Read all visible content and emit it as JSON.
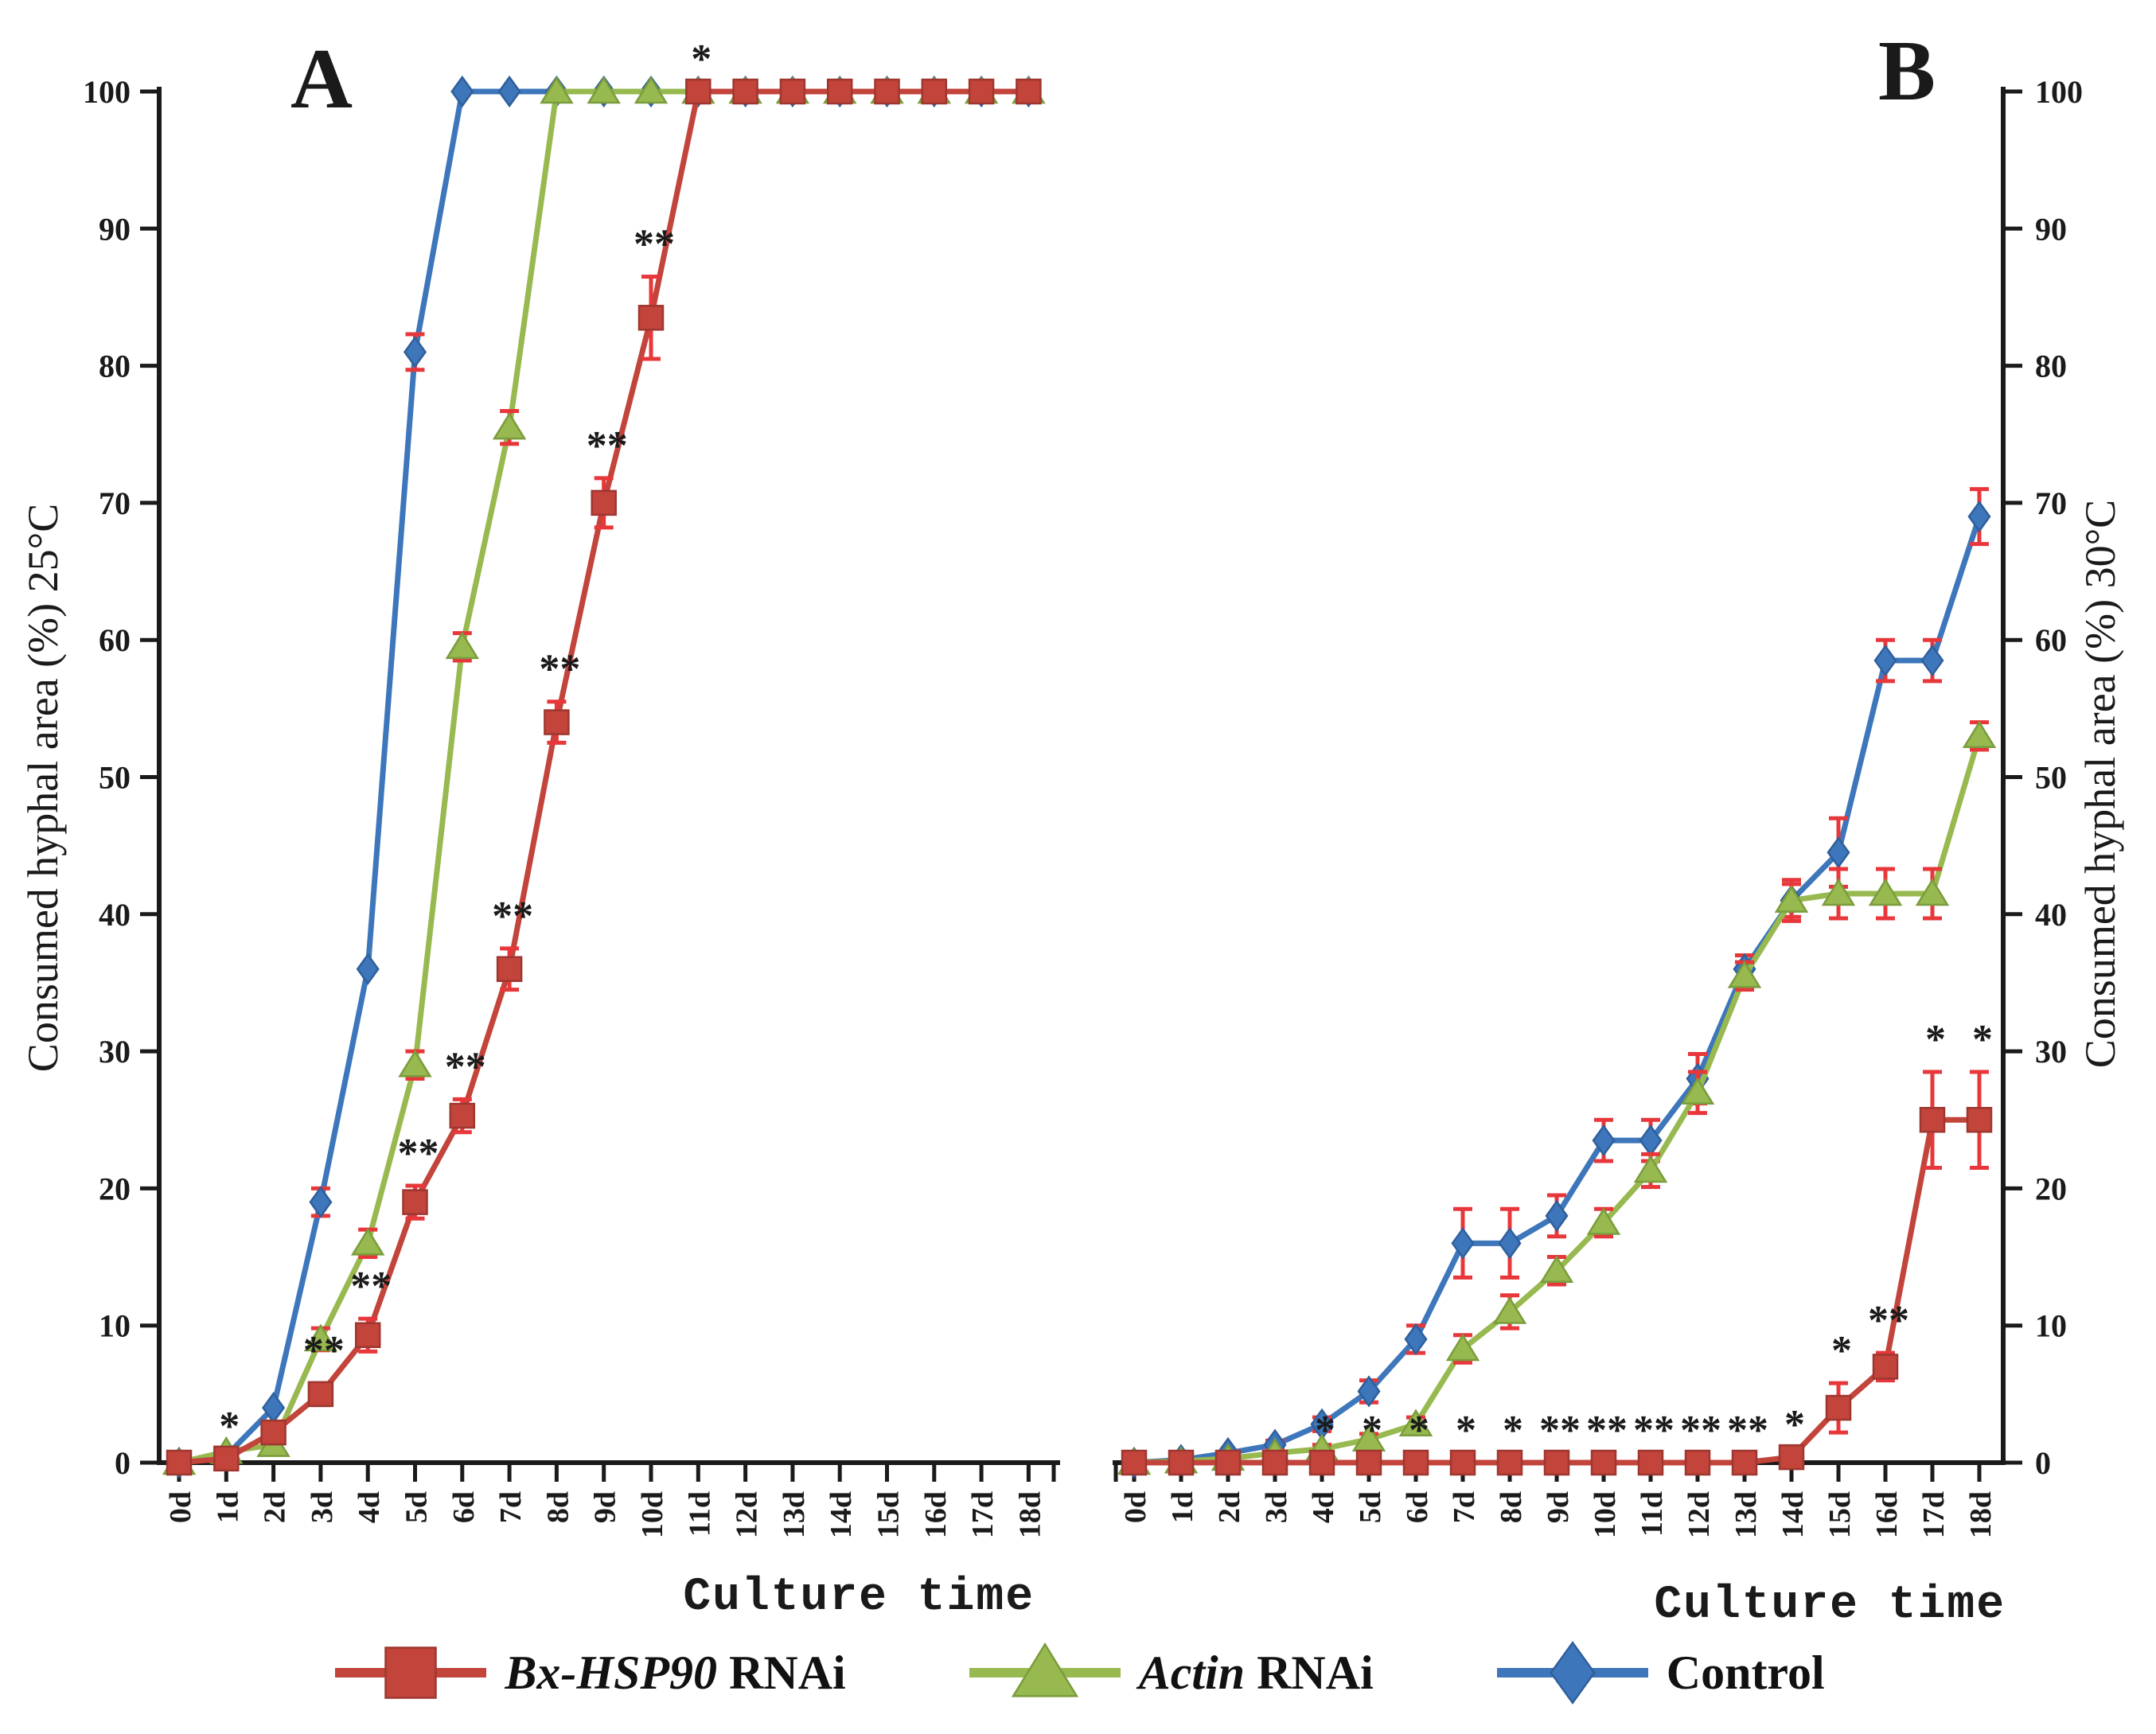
{
  "figure": {
    "panel_a_letter": "A",
    "panel_b_letter": "B",
    "background": "#ffffff",
    "significance_color": "#e93347",
    "error_bar_color": "#e8373b"
  },
  "legend": {
    "items": [
      {
        "italic": "Bx-HSP90",
        "rest": " RNAi",
        "marker": "square",
        "color": "#c2443b",
        "edge": "#9e3730"
      },
      {
        "italic": "Actin",
        "rest": " RNAi",
        "marker": "triangle",
        "color": "#97b94f",
        "edge": "#7a9c3c"
      },
      {
        "italic": "",
        "rest": "Control",
        "marker": "diamond",
        "color": "#3d76bb",
        "edge": "#2f5f9a"
      }
    ]
  },
  "chart_data": [
    {
      "type": "line",
      "panel": "A",
      "title": "",
      "xlabel": "Culture time",
      "ylabel": "Consumed hyphal area (%) 25°C",
      "ylim": [
        0,
        100
      ],
      "ytick_step": 10,
      "grid": false,
      "legend_position": "bottom",
      "categories": [
        "0d",
        "1d",
        "2d",
        "3d",
        "4d",
        "5d",
        "6d",
        "7d",
        "8d",
        "9d",
        "10d",
        "11d",
        "12d",
        "13d",
        "14d",
        "15d",
        "16d",
        "17d",
        "18d"
      ],
      "series": [
        {
          "name": "Bx-HSP90 RNAi",
          "marker": "square",
          "color": "#c2443b",
          "edge": "#9e3730",
          "values": [
            0,
            0.3,
            2.2,
            5,
            9.3,
            19,
            25.3,
            36,
            54,
            70,
            83.5,
            100,
            100,
            100,
            100,
            100,
            100,
            100,
            100
          ],
          "errors": [
            0,
            0,
            0.5,
            0.8,
            1.2,
            1.2,
            1.2,
            1.5,
            1.5,
            1.8,
            3,
            0,
            0,
            0,
            0,
            0,
            0,
            0,
            0
          ]
        },
        {
          "name": "Actin RNAi",
          "marker": "triangle",
          "color": "#97b94f",
          "edge": "#7a9c3c",
          "values": [
            0,
            0.8,
            1.3,
            9,
            16,
            29,
            59.5,
            75.5,
            100,
            100,
            100,
            100,
            100,
            100,
            100,
            100,
            100,
            100,
            100
          ],
          "errors": [
            0,
            0,
            0,
            0.8,
            1,
            1,
            1,
            1.2,
            0,
            0,
            0,
            0,
            0,
            0,
            0,
            0,
            0,
            0,
            0
          ]
        },
        {
          "name": "Control",
          "marker": "diamond",
          "color": "#3d76bb",
          "edge": "#2f5f9a",
          "values": [
            0,
            0.5,
            4,
            19,
            36,
            81,
            100,
            100,
            100,
            100,
            100,
            100,
            100,
            100,
            100,
            100,
            100,
            100,
            100
          ],
          "errors": [
            0,
            0,
            0,
            1,
            0,
            1.3,
            0,
            0,
            0,
            0,
            0,
            0,
            0,
            0,
            0,
            0,
            0,
            0,
            0
          ]
        }
      ],
      "significance_above_series": "Bx-HSP90 RNAi",
      "significance": {
        "1d": "*",
        "3d": "**",
        "4d": "**",
        "5d": "**",
        "6d": "**",
        "7d": "**",
        "8d": "**",
        "9d": "**",
        "10d": "**",
        "11d": "*"
      }
    },
    {
      "type": "line",
      "panel": "B",
      "title": "",
      "xlabel": "Culture time",
      "ylabel": "Consumed hyphal area (%) 30°C",
      "ylim": [
        0,
        100
      ],
      "ytick_step": 10,
      "grid": false,
      "legend_position": "bottom",
      "categories": [
        "0d",
        "1d",
        "2d",
        "3d",
        "4d",
        "5d",
        "6d",
        "7d",
        "8d",
        "9d",
        "10d",
        "11d",
        "12d",
        "13d",
        "14d",
        "15d",
        "16d",
        "17d",
        "18d"
      ],
      "series": [
        {
          "name": "Bx-HSP90 RNAi",
          "marker": "square",
          "color": "#c2443b",
          "edge": "#9e3730",
          "values": [
            0,
            0,
            0,
            0,
            0,
            0,
            0,
            0,
            0,
            0,
            0,
            0,
            0,
            0,
            0.4,
            4,
            7,
            25,
            25
          ],
          "errors": [
            0,
            0,
            0,
            0,
            0,
            0,
            0,
            0,
            0,
            0,
            0,
            0,
            0,
            0,
            0,
            1.8,
            1,
            3.5,
            3.5
          ]
        },
        {
          "name": "Actin RNAi",
          "marker": "triangle",
          "color": "#97b94f",
          "edge": "#7a9c3c",
          "values": [
            0,
            0.1,
            0.3,
            0.7,
            1,
            1.7,
            2.8,
            8.3,
            11,
            14,
            17.5,
            21.3,
            27,
            35.5,
            41,
            41.5,
            41.5,
            41.5,
            53
          ],
          "errors": [
            0,
            0,
            0,
            0.2,
            0.3,
            0.4,
            0.5,
            1,
            1.2,
            1,
            1,
            1.2,
            1.5,
            1,
            1.5,
            1.8,
            1.8,
            1.8,
            1
          ]
        },
        {
          "name": "Control",
          "marker": "diamond",
          "color": "#3d76bb",
          "edge": "#2f5f9a",
          "values": [
            0,
            0.2,
            0.7,
            1.3,
            2.8,
            5.2,
            9,
            16,
            16,
            18,
            23.5,
            23.5,
            28,
            36,
            41,
            44.5,
            58.5,
            58.5,
            69
          ],
          "errors": [
            0,
            0,
            0,
            0.3,
            0.5,
            0.8,
            1,
            2.5,
            2.5,
            1.5,
            1.5,
            1.5,
            1.8,
            1,
            1.2,
            2.5,
            1.5,
            1.5,
            2
          ]
        }
      ],
      "significance_above_series": "Bx-HSP90 RNAi",
      "significance": {
        "4d": "*",
        "5d": "*",
        "6d": "*",
        "7d": "*",
        "8d": "*",
        "9d": "**",
        "10d": "**",
        "11d": "**",
        "12d": "**",
        "13d": "**",
        "14d": "*",
        "15d": "*",
        "16d": "**",
        "17d": "*",
        "18d": "*"
      }
    }
  ]
}
